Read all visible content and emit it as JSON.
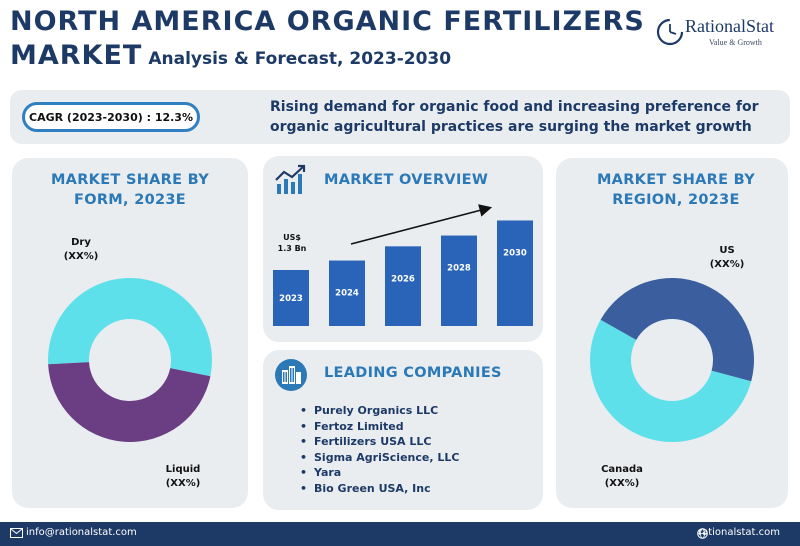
{
  "header": {
    "title_line1": "NORTH AMERICA ORGANIC FERTILIZERS",
    "title_line2_strong": "MARKET",
    "title_line2_sub": "Analysis & Forecast, 2023-2030"
  },
  "logo": {
    "name": "RationalStat",
    "tagline": "Value & Growth",
    "icon": "clock-arc-icon"
  },
  "banner": {
    "cagr": "CAGR (2023-2030) : 12.3%",
    "text": "Rising demand for organic food and increasing preference for organic agricultural practices are surging the market growth"
  },
  "form_card": {
    "title": "MARKET SHARE BY FORM, 2023E"
  },
  "overview_card": {
    "title": "MARKET OVERVIEW",
    "icon": "trend-chart-icon",
    "value_label_line1": "US$",
    "value_label_line2": "1.3 Bn"
  },
  "companies_card": {
    "title": "LEADING COMPANIES",
    "icon": "buildings-icon",
    "items": [
      "Purely Organics LLC",
      "Fertoz Limited",
      "Fertilizers USA LLC",
      "Sigma AgriScience, LLC",
      "Yara",
      "Bio Green USA, Inc"
    ]
  },
  "region_card": {
    "title": "MARKET SHARE BY REGION, 2023E"
  },
  "footer": {
    "email": "info@rationalstat.com",
    "website": "rationalstat.com",
    "email_icon": "envelope-icon",
    "web_icon": "globe-icon"
  },
  "colors": {
    "navy": "#1d3a67",
    "accent_blue": "#2b79b6",
    "bar_blue": "#2a64b8",
    "cyan": "#5ee0ea",
    "purple": "#6b3e84",
    "steel_blue": "#3a5e9e",
    "card_bg": "#eaedf0"
  },
  "chart_data": [
    {
      "type": "pie",
      "variant": "donut",
      "title": "MARKET SHARE BY FORM, 2023E",
      "labels": [
        "Dry",
        "Liquid"
      ],
      "value_labels": [
        "(XX%)",
        "(XX%)"
      ],
      "values": [
        54,
        46
      ],
      "colors": [
        "#5ee0ea",
        "#6b3e84"
      ]
    },
    {
      "type": "bar",
      "title": "MARKET OVERVIEW",
      "categories": [
        "2023",
        "2024",
        "2026",
        "2028",
        "2030"
      ],
      "values": [
        1.3,
        1.52,
        1.85,
        2.1,
        2.45
      ],
      "ylim": [
        0,
        2.6
      ],
      "annotations": [
        "US$",
        "1.3 Bn"
      ],
      "trend_arrow": true
    },
    {
      "type": "pie",
      "variant": "donut",
      "title": "MARKET SHARE BY REGION, 2023E",
      "labels": [
        "US",
        "Canada"
      ],
      "value_labels": [
        "(XX%)",
        "(XX%)"
      ],
      "values": [
        54,
        46
      ],
      "colors": [
        "#5ee0ea",
        "#3a5e9e"
      ]
    }
  ]
}
